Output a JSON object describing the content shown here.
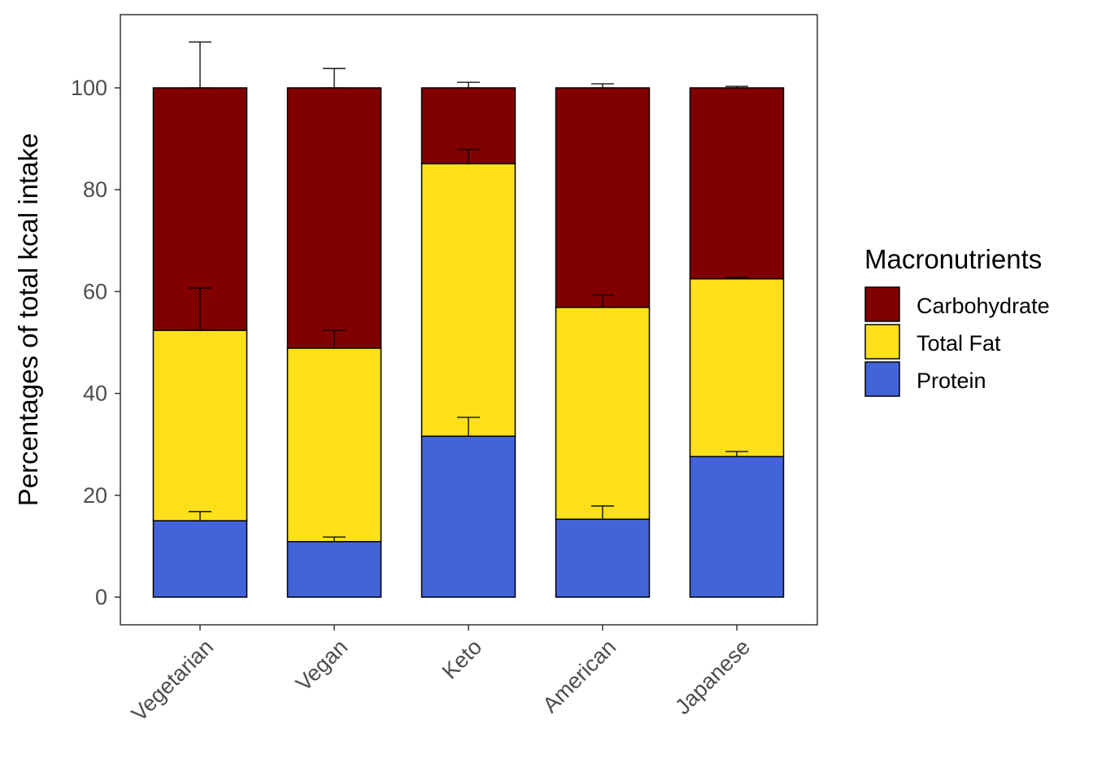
{
  "chart_data": {
    "type": "bar",
    "stacked": true,
    "title": "",
    "xlabel": "",
    "ylabel": "Percentages of total kcal intake",
    "ylim": [
      -5.5,
      114
    ],
    "yticks": [
      0,
      20,
      40,
      60,
      80,
      100
    ],
    "grid": false,
    "categories": [
      "Vegetarian",
      "Vegan",
      "Keto",
      "American",
      "Japanese"
    ],
    "series": [
      {
        "name": "Protein",
        "color": "#4363D8",
        "values": [
          15.0,
          10.9,
          31.6,
          15.3,
          27.6
        ],
        "error": [
          1.8,
          0.9,
          3.7,
          2.6,
          1.0
        ]
      },
      {
        "name": "Total Fat",
        "color": "#FDE01A",
        "values": [
          37.4,
          38.0,
          53.5,
          41.6,
          34.9
        ],
        "error": [
          8.3,
          3.5,
          2.8,
          2.4,
          0.3
        ]
      },
      {
        "name": "Carbohydrate",
        "color": "#800000",
        "values": [
          47.6,
          51.1,
          14.9,
          43.1,
          37.5
        ],
        "error": [
          9.0,
          3.8,
          1.1,
          0.8,
          0.3
        ]
      }
    ],
    "legend": {
      "title": "Macronutrients",
      "placement": "right",
      "entries": [
        "Carbohydrate",
        "Total Fat",
        "Protein"
      ]
    }
  }
}
